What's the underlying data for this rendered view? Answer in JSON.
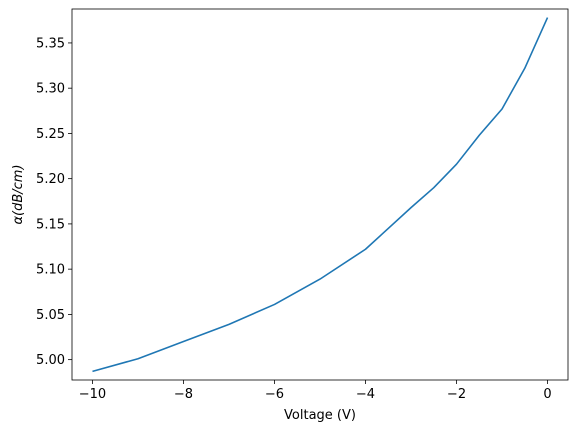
{
  "chart_data": {
    "type": "line",
    "title": "",
    "xlabel": "Voltage (V)",
    "ylabel": "α(dB/cm)",
    "xlim": [
      -10.45,
      0.45
    ],
    "ylim": [
      4.9775,
      5.3875
    ],
    "xticks": [
      -10,
      -8,
      -6,
      -4,
      -2,
      0
    ],
    "xtick_labels": [
      "−10",
      "−8",
      "−6",
      "−4",
      "−2",
      "0"
    ],
    "yticks": [
      5.0,
      5.05,
      5.1,
      5.15,
      5.2,
      5.25,
      5.3,
      5.35
    ],
    "ytick_labels": [
      "5.00",
      "5.05",
      "5.10",
      "5.15",
      "5.20",
      "5.25",
      "5.30",
      "5.35"
    ],
    "grid": false,
    "series": [
      {
        "color": "#1f77b4",
        "x": [
          -10,
          -9,
          -8,
          -7,
          -6,
          -5,
          -4,
          -3.5,
          -3,
          -2.5,
          -2,
          -1.5,
          -1,
          -0.5,
          0
        ],
        "y": [
          4.987,
          5.001,
          5.02,
          5.039,
          5.061,
          5.089,
          5.122,
          5.145,
          5.168,
          5.19,
          5.216,
          5.248,
          5.277,
          5.322,
          5.378
        ]
      }
    ]
  }
}
